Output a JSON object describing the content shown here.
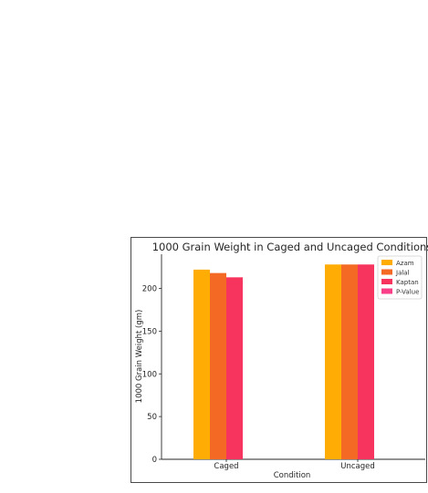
{
  "chart_data": {
    "type": "bar",
    "title": "1000 Grain Weight in Caged and Uncaged Conditions",
    "xlabel": "Condition",
    "ylabel": "1000 Grain Weight (gm)",
    "categories": [
      "Caged",
      "Uncaged"
    ],
    "ylim": [
      0,
      240
    ],
    "yticks": [
      0,
      50,
      100,
      150,
      200
    ],
    "grid": false,
    "legend_position": "top-right",
    "series": [
      {
        "name": "Azam",
        "color": "#FFAC05",
        "values": [
          222,
          228
        ]
      },
      {
        "name": "Jalal",
        "color": "#F46A25",
        "values": [
          218,
          228
        ]
      },
      {
        "name": "Kaptan",
        "color": "#F7345E",
        "values": [
          213,
          228
        ]
      },
      {
        "name": "P-Value",
        "color": "#F93F87",
        "values": [
          0,
          0
        ]
      }
    ]
  }
}
